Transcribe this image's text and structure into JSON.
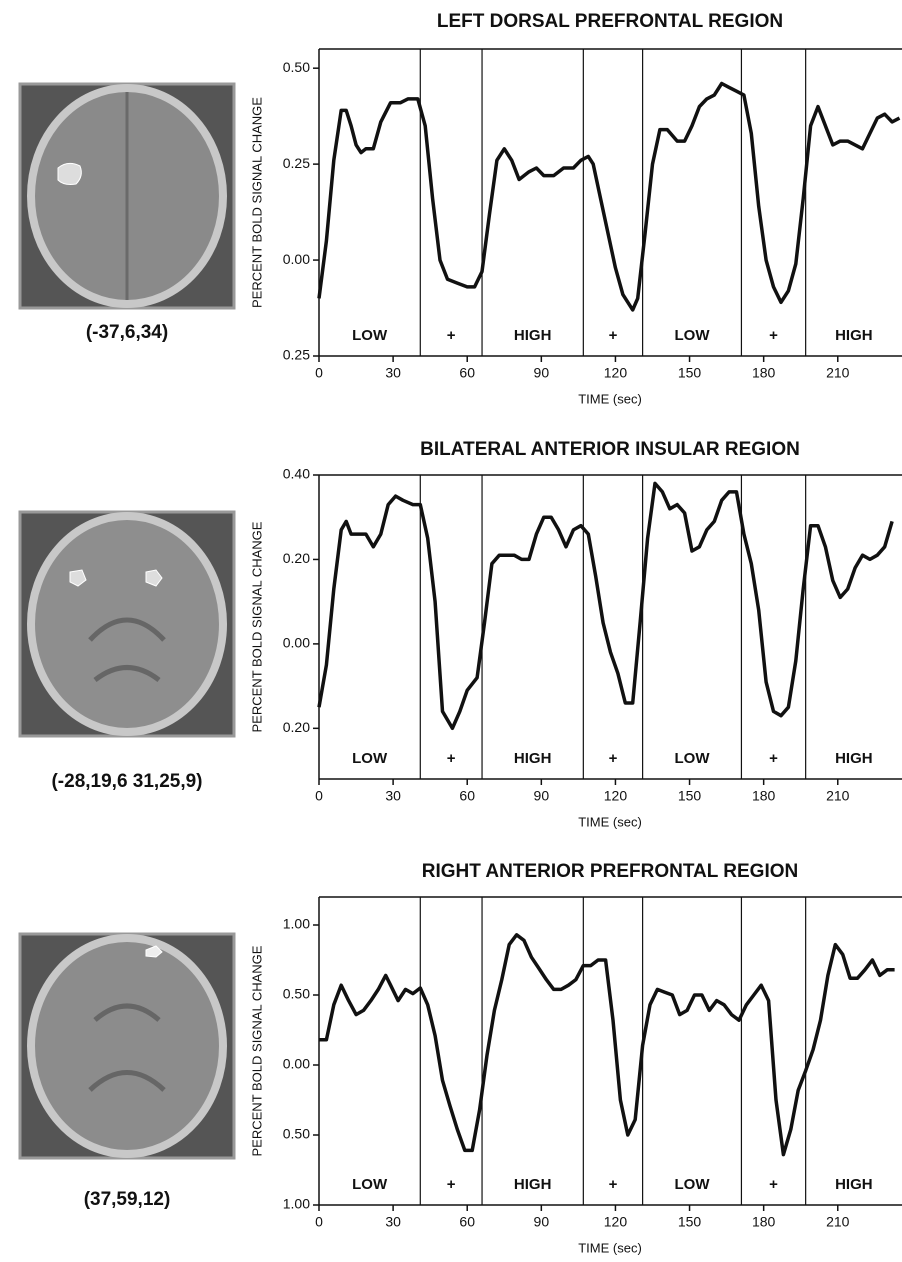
{
  "brain_images": [
    {
      "label": "(-37,6,34)"
    },
    {
      "label": "(-28,19,6 31,25,9)"
    },
    {
      "label": "(37,59,12)"
    }
  ],
  "chart_data": [
    {
      "type": "line",
      "title": "LEFT DORSAL PREFRONTAL REGION",
      "x_label": "TIME (sec)",
      "y_label": "PERCENT BOLD SIGNAL CHANGE",
      "xlim": [
        0,
        236
      ],
      "xticks": [
        0,
        30,
        60,
        90,
        120,
        150,
        180,
        210
      ],
      "ylim": [
        -0.25,
        0.55
      ],
      "yticks": [
        {
          "value": 0.5,
          "label": "0.50"
        },
        {
          "value": 0.25,
          "label": "0.25"
        },
        {
          "value": 0,
          "label": "0.00"
        },
        {
          "value": -0.25,
          "label": "0.25"
        }
      ],
      "blocks": [
        {
          "text": "LOW",
          "start": 0,
          "end": 41
        },
        {
          "text": "+",
          "start": 41,
          "end": 66
        },
        {
          "text": "HIGH",
          "start": 66,
          "end": 107
        },
        {
          "text": "+",
          "start": 107,
          "end": 131
        },
        {
          "text": "LOW",
          "start": 131,
          "end": 171
        },
        {
          "text": "+",
          "start": 171,
          "end": 197
        },
        {
          "text": "HIGH",
          "start": 197,
          "end": 236
        }
      ],
      "series": [
        {
          "color": "#111111",
          "x": [
            0,
            3,
            6,
            9,
            11,
            13,
            15,
            17,
            19,
            22,
            25,
            29,
            33,
            36,
            40,
            43,
            46,
            49,
            52,
            56,
            60,
            63,
            66,
            69,
            72,
            75,
            78,
            81,
            85,
            88,
            91,
            95,
            99,
            103,
            106,
            109,
            111,
            114,
            117,
            120,
            123,
            127,
            129,
            132,
            135,
            138,
            141,
            145,
            148,
            151,
            154,
            157,
            160,
            163,
            166,
            169,
            172,
            175,
            178,
            181,
            184,
            187,
            190,
            193,
            196,
            199,
            202,
            205,
            208,
            211,
            214,
            217,
            220,
            223,
            226,
            229,
            232,
            235
          ],
          "values": [
            -0.1,
            0.05,
            0.26,
            0.39,
            0.39,
            0.35,
            0.3,
            0.28,
            0.29,
            0.29,
            0.36,
            0.41,
            0.41,
            0.42,
            0.42,
            0.35,
            0.16,
            0.0,
            -0.05,
            -0.06,
            -0.07,
            -0.07,
            -0.03,
            0.12,
            0.26,
            0.29,
            0.26,
            0.21,
            0.23,
            0.24,
            0.22,
            0.22,
            0.24,
            0.24,
            0.26,
            0.27,
            0.25,
            0.16,
            0.07,
            -0.02,
            -0.09,
            -0.13,
            -0.1,
            0.07,
            0.25,
            0.34,
            0.34,
            0.31,
            0.31,
            0.35,
            0.4,
            0.42,
            0.43,
            0.46,
            0.45,
            0.44,
            0.43,
            0.33,
            0.14,
            0.0,
            -0.07,
            -0.11,
            -0.08,
            -0.01,
            0.16,
            0.35,
            0.4,
            0.35,
            0.3,
            0.31,
            0.31,
            0.3,
            0.29,
            0.33,
            0.37,
            0.38,
            0.36,
            0.37
          ]
        }
      ]
    },
    {
      "type": "line",
      "title": "BILATERAL ANTERIOR INSULAR REGION",
      "x_label": "TIME (sec)",
      "y_label": "PERCENT BOLD SIGNAL CHANGE",
      "xlim": [
        0,
        236
      ],
      "xticks": [
        0,
        30,
        60,
        90,
        120,
        150,
        180,
        210
      ],
      "ylim": [
        -0.32,
        0.4
      ],
      "yticks": [
        {
          "value": 0.4,
          "label": "0.40"
        },
        {
          "value": 0.2,
          "label": "0.20"
        },
        {
          "value": 0,
          "label": "0.00"
        },
        {
          "value": -0.2,
          "label": "0.20"
        }
      ],
      "blocks": [
        {
          "text": "LOW",
          "start": 0,
          "end": 41
        },
        {
          "text": "+",
          "start": 41,
          "end": 66
        },
        {
          "text": "HIGH",
          "start": 66,
          "end": 107
        },
        {
          "text": "+",
          "start": 107,
          "end": 131
        },
        {
          "text": "LOW",
          "start": 131,
          "end": 171
        },
        {
          "text": "+",
          "start": 171,
          "end": 197
        },
        {
          "text": "HIGH",
          "start": 197,
          "end": 236
        }
      ],
      "series": [
        {
          "color": "#111111",
          "x": [
            0,
            3,
            6,
            9,
            11,
            13,
            17,
            19,
            22,
            25,
            28,
            31,
            34,
            38,
            41,
            44,
            47,
            50,
            54,
            57,
            60,
            64,
            67,
            70,
            73,
            76,
            79,
            82,
            85,
            88,
            91,
            94,
            97,
            100,
            103,
            106,
            109,
            112,
            115,
            118,
            121,
            124,
            127,
            130,
            133,
            136,
            139,
            142,
            145,
            148,
            151,
            154,
            157,
            160,
            163,
            166,
            169,
            172,
            175,
            178,
            181,
            184,
            187,
            190,
            193,
            196,
            199,
            202,
            205,
            208,
            211,
            214,
            217,
            220,
            223,
            226,
            229,
            232
          ],
          "values": [
            -0.15,
            -0.05,
            0.13,
            0.27,
            0.29,
            0.26,
            0.26,
            0.26,
            0.23,
            0.26,
            0.33,
            0.35,
            0.34,
            0.33,
            0.33,
            0.25,
            0.1,
            -0.16,
            -0.2,
            -0.16,
            -0.11,
            -0.08,
            0.05,
            0.19,
            0.21,
            0.21,
            0.21,
            0.2,
            0.2,
            0.26,
            0.3,
            0.3,
            0.27,
            0.23,
            0.27,
            0.28,
            0.26,
            0.16,
            0.05,
            -0.02,
            -0.07,
            -0.14,
            -0.14,
            0.05,
            0.25,
            0.38,
            0.36,
            0.32,
            0.33,
            0.31,
            0.22,
            0.23,
            0.27,
            0.29,
            0.34,
            0.36,
            0.36,
            0.26,
            0.19,
            0.08,
            -0.09,
            -0.16,
            -0.17,
            -0.15,
            -0.04,
            0.13,
            0.28,
            0.28,
            0.23,
            0.15,
            0.11,
            0.13,
            0.18,
            0.21,
            0.2,
            0.21,
            0.23,
            0.29
          ]
        }
      ]
    },
    {
      "type": "line",
      "title": "RIGHT ANTERIOR PREFRONTAL REGION",
      "x_label": "TIME   (sec)",
      "y_label": "PERCENT BOLD SIGNAL CHANGE",
      "xlim": [
        0,
        236
      ],
      "xticks": [
        0,
        30,
        60,
        90,
        120,
        150,
        180,
        210
      ],
      "ylim": [
        -1.0,
        1.2
      ],
      "yticks": [
        {
          "value": 1.0,
          "label": "1.00"
        },
        {
          "value": 0.5,
          "label": "0.50"
        },
        {
          "value": 0,
          "label": "0.00"
        },
        {
          "value": -0.5,
          "label": "0.50"
        },
        {
          "value": -1.0,
          "label": "1.00"
        }
      ],
      "blocks": [
        {
          "text": "LOW",
          "start": 0,
          "end": 41
        },
        {
          "text": "+",
          "start": 41,
          "end": 66
        },
        {
          "text": "HIGH",
          "start": 66,
          "end": 107
        },
        {
          "text": "+",
          "start": 107,
          "end": 131
        },
        {
          "text": "LOW",
          "start": 131,
          "end": 171
        },
        {
          "text": "+",
          "start": 171,
          "end": 197
        },
        {
          "text": "HIGH",
          "start": 197,
          "end": 236
        }
      ],
      "series": [
        {
          "color": "#111111",
          "x": [
            0,
            3,
            6,
            9,
            12,
            15,
            18,
            21,
            24,
            27,
            29,
            32,
            35,
            38,
            41,
            44,
            47,
            50,
            53,
            56,
            59,
            62,
            65,
            68,
            71,
            74,
            77,
            80,
            83,
            86,
            89,
            92,
            95,
            98,
            101,
            104,
            107,
            110,
            113,
            116,
            119,
            122,
            125,
            128,
            131,
            134,
            137,
            140,
            143,
            146,
            149,
            152,
            155,
            158,
            161,
            164,
            167,
            170,
            173,
            176,
            179,
            182,
            185,
            188,
            191,
            194,
            197,
            200,
            203,
            206,
            209,
            212,
            215,
            218,
            221,
            224,
            227,
            230,
            233
          ],
          "values": [
            0.18,
            0.18,
            0.43,
            0.57,
            0.46,
            0.36,
            0.39,
            0.46,
            0.54,
            0.64,
            0.57,
            0.46,
            0.54,
            0.51,
            0.55,
            0.43,
            0.21,
            -0.11,
            -0.29,
            -0.46,
            -0.61,
            -0.61,
            -0.32,
            0.07,
            0.39,
            0.61,
            0.86,
            0.93,
            0.89,
            0.77,
            0.69,
            0.61,
            0.54,
            0.54,
            0.57,
            0.61,
            0.71,
            0.71,
            0.75,
            0.75,
            0.32,
            -0.25,
            -0.5,
            -0.39,
            0.14,
            0.43,
            0.54,
            0.52,
            0.5,
            0.36,
            0.39,
            0.5,
            0.5,
            0.39,
            0.46,
            0.43,
            0.36,
            0.32,
            0.43,
            0.5,
            0.57,
            0.46,
            -0.25,
            -0.64,
            -0.46,
            -0.18,
            -0.04,
            0.11,
            0.32,
            0.64,
            0.86,
            0.79,
            0.62,
            0.62,
            0.68,
            0.75,
            0.64,
            0.68,
            0.68
          ]
        }
      ]
    }
  ]
}
